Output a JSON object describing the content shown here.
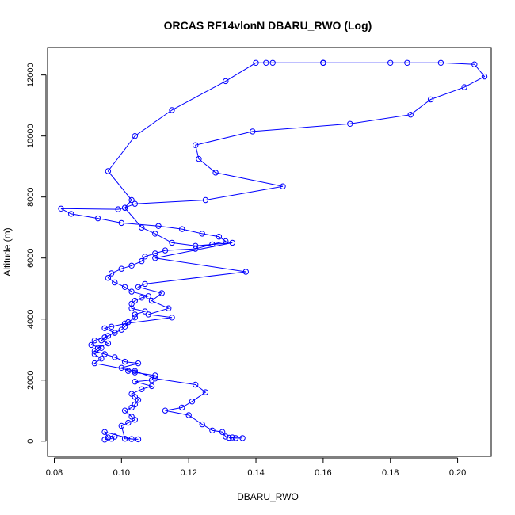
{
  "chart_data": {
    "type": "line",
    "title": "ORCAS RF14vlonN DBARU_RWO (Log)",
    "xlabel": "DBARU_RWO",
    "ylabel": "Altitude (m)",
    "xlim": [
      0.078,
      0.21
    ],
    "ylim": [
      -500,
      12900
    ],
    "x_ticks": [
      0.08,
      0.1,
      0.12,
      0.14,
      0.16,
      0.18,
      0.2
    ],
    "x_tick_labels": [
      "0.08",
      "0.10",
      "0.12",
      "0.14",
      "0.16",
      "0.18",
      "0.20"
    ],
    "y_ticks": [
      0,
      2000,
      4000,
      6000,
      8000,
      10000,
      12000
    ],
    "y_tick_labels": [
      "0",
      "2000",
      "4000",
      "6000",
      "8000",
      "10000",
      "12000"
    ],
    "grid": false,
    "marker": "open-circle",
    "color": "#0000ff",
    "series": [
      {
        "points": [
          [
            0.095,
            50
          ],
          [
            0.097,
            80
          ],
          [
            0.098,
            150
          ],
          [
            0.096,
            120
          ],
          [
            0.095,
            300
          ],
          [
            0.103,
            70
          ],
          [
            0.105,
            60
          ],
          [
            0.101,
            80
          ],
          [
            0.1,
            500
          ],
          [
            0.102,
            600
          ],
          [
            0.104,
            700
          ],
          [
            0.103,
            800
          ],
          [
            0.101,
            1000
          ],
          [
            0.103,
            1100
          ],
          [
            0.104,
            1200
          ],
          [
            0.105,
            1350
          ],
          [
            0.104,
            1450
          ],
          [
            0.103,
            1550
          ],
          [
            0.106,
            1700
          ],
          [
            0.109,
            1800
          ],
          [
            0.104,
            1950
          ],
          [
            0.109,
            2000
          ],
          [
            0.11,
            2150
          ],
          [
            0.104,
            2250
          ],
          [
            0.102,
            2300
          ],
          [
            0.1,
            2400
          ],
          [
            0.105,
            2550
          ],
          [
            0.101,
            2600
          ],
          [
            0.098,
            2750
          ],
          [
            0.095,
            2850
          ],
          [
            0.092,
            2950
          ],
          [
            0.093,
            3050
          ],
          [
            0.096,
            3200
          ],
          [
            0.094,
            3300
          ],
          [
            0.096,
            3450
          ],
          [
            0.098,
            3550
          ],
          [
            0.1,
            3650
          ],
          [
            0.101,
            3750
          ],
          [
            0.102,
            3900
          ],
          [
            0.104,
            4050
          ],
          [
            0.104,
            4150
          ],
          [
            0.107,
            4250
          ],
          [
            0.103,
            4350
          ],
          [
            0.103,
            4500
          ],
          [
            0.104,
            4600
          ],
          [
            0.106,
            4700
          ],
          [
            0.108,
            4750
          ],
          [
            0.103,
            4900
          ],
          [
            0.101,
            5050
          ],
          [
            0.098,
            5200
          ],
          [
            0.096,
            5350
          ],
          [
            0.097,
            5500
          ],
          [
            0.1,
            5650
          ],
          [
            0.103,
            5750
          ],
          [
            0.106,
            5900
          ],
          [
            0.107,
            6050
          ],
          [
            0.11,
            6150
          ],
          [
            0.113,
            6250
          ],
          [
            0.122,
            6300
          ],
          [
            0.127,
            6450
          ],
          [
            0.131,
            6550
          ],
          [
            0.129,
            6700
          ],
          [
            0.124,
            6800
          ],
          [
            0.118,
            6950
          ],
          [
            0.111,
            7050
          ],
          [
            0.1,
            7150
          ],
          [
            0.093,
            7300
          ],
          [
            0.085,
            7450
          ],
          [
            0.082,
            7620
          ],
          [
            0.099,
            7600
          ],
          [
            0.101,
            7650
          ],
          [
            0.104,
            7780
          ],
          [
            0.125,
            7900
          ],
          [
            0.148,
            8350
          ],
          [
            0.128,
            8800
          ],
          [
            0.123,
            9250
          ],
          [
            0.122,
            9700
          ],
          [
            0.139,
            10150
          ],
          [
            0.168,
            10400
          ],
          [
            0.186,
            10700
          ],
          [
            0.192,
            11200
          ],
          [
            0.202,
            11600
          ],
          [
            0.208,
            11950
          ],
          [
            0.205,
            12350
          ],
          [
            0.195,
            12400
          ],
          [
            0.16,
            12400
          ],
          [
            0.143,
            12400
          ],
          [
            0.16,
            12400
          ],
          [
            0.18,
            12400
          ],
          [
            0.185,
            12400
          ],
          [
            0.16,
            12400
          ],
          [
            0.145,
            12400
          ],
          [
            0.14,
            12400
          ],
          [
            0.131,
            11800
          ],
          [
            0.115,
            10850
          ],
          [
            0.104,
            10000
          ],
          [
            0.096,
            8850
          ],
          [
            0.103,
            7900
          ],
          [
            0.101,
            7650
          ],
          [
            0.106,
            7000
          ],
          [
            0.11,
            6800
          ],
          [
            0.115,
            6500
          ],
          [
            0.122,
            6400
          ],
          [
            0.133,
            6500
          ],
          [
            0.11,
            6000
          ],
          [
            0.137,
            5550
          ],
          [
            0.107,
            5150
          ],
          [
            0.105,
            5050
          ],
          [
            0.112,
            4850
          ],
          [
            0.109,
            4600
          ],
          [
            0.114,
            4350
          ],
          [
            0.108,
            4150
          ],
          [
            0.115,
            4050
          ],
          [
            0.101,
            3850
          ],
          [
            0.097,
            3750
          ],
          [
            0.095,
            3700
          ],
          [
            0.098,
            3550
          ],
          [
            0.095,
            3400
          ],
          [
            0.092,
            3300
          ],
          [
            0.091,
            3150
          ],
          [
            0.094,
            3050
          ],
          [
            0.092,
            2850
          ],
          [
            0.094,
            2700
          ],
          [
            0.092,
            2550
          ],
          [
            0.104,
            2300
          ],
          [
            0.11,
            2050
          ],
          [
            0.122,
            1850
          ],
          [
            0.125,
            1600
          ],
          [
            0.121,
            1300
          ],
          [
            0.118,
            1100
          ],
          [
            0.113,
            1000
          ],
          [
            0.12,
            850
          ],
          [
            0.124,
            550
          ],
          [
            0.127,
            350
          ],
          [
            0.13,
            300
          ],
          [
            0.131,
            150
          ],
          [
            0.133,
            120
          ],
          [
            0.134,
            100
          ],
          [
            0.132,
            110
          ],
          [
            0.136,
            100
          ]
        ]
      }
    ]
  }
}
